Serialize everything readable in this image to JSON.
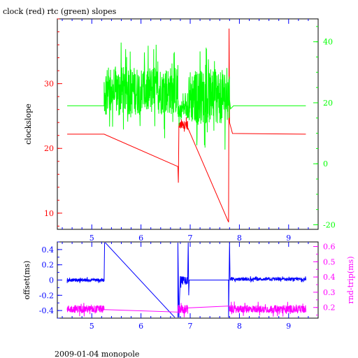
{
  "title": "clock (red) rtc (green) slopes",
  "footer": "2009-01-04 monopole",
  "colors": {
    "clock": "#ff0000",
    "rtc": "#00ff00",
    "offset": "#0000ff",
    "rndtrip": "#ff00ff",
    "frame": "#000000",
    "background": "#ffffff"
  },
  "chart_data": [
    {
      "type": "line",
      "name": "top-panel",
      "x_range": [
        4.3,
        9.6
      ],
      "x_ticks": [
        5,
        6,
        7,
        8,
        9
      ],
      "x_tick_labels": [
        "5",
        "6",
        "7",
        "8",
        "9"
      ],
      "left_axis": {
        "label": "clockslope",
        "range": [
          7.5,
          40.0
        ],
        "ticks": [
          10,
          20,
          30
        ],
        "tick_labels": [
          "10",
          "20",
          "30"
        ],
        "color": "#ff0000"
      },
      "right_axis": {
        "label": "",
        "range": [
          -21.5,
          47.5
        ],
        "ticks": [
          -20,
          0,
          20,
          40
        ],
        "tick_labels": [
          "-20",
          "0",
          "20",
          "40"
        ],
        "color": "#00ff00"
      },
      "series": [
        {
          "name": "clock",
          "axis": "left",
          "color": "#ff0000",
          "x": [
            4.5,
            5.25,
            6.75,
            6.76,
            6.77,
            6.82,
            6.88,
            6.92,
            6.95,
            7.78,
            7.79,
            7.8,
            7.86,
            9.35
          ],
          "y": [
            22.2,
            22.2,
            17.2,
            14.7,
            22.8,
            24.5,
            22.6,
            24.8,
            22.9,
            8.6,
            38.5,
            24.0,
            22.3,
            22.2
          ],
          "noise": [
            {
              "x_start": 6.77,
              "x_end": 6.95,
              "center": 23.6,
              "amplitude": 1.3
            }
          ]
        },
        {
          "name": "rtc",
          "axis": "right",
          "color": "#00ff00",
          "x": [
            4.5,
            5.25,
            7.82,
            7.88,
            9.35
          ],
          "y": [
            19.0,
            19.0,
            18.0,
            19.0,
            19.0
          ],
          "noise": [
            {
              "x_start": 5.25,
              "x_end": 6.75,
              "center": 24.0,
              "amplitude": 16.0
            },
            {
              "x_start": 6.75,
              "x_end": 6.97,
              "center": 18.0,
              "amplitude": 6.0
            },
            {
              "x_start": 6.97,
              "x_end": 7.8,
              "center": 22.0,
              "amplitude": 18.0
            }
          ]
        }
      ]
    },
    {
      "type": "line",
      "name": "bottom-panel",
      "x_range": [
        4.3,
        9.6
      ],
      "x_ticks": [
        5,
        6,
        7,
        8,
        9
      ],
      "x_tick_labels": [
        "5",
        "6",
        "7",
        "8",
        "9"
      ],
      "left_axis": {
        "label": "offset(ms)",
        "range": [
          -0.5,
          0.5
        ],
        "ticks": [
          -0.4,
          -0.2,
          0,
          0.2,
          0.4
        ],
        "tick_labels": [
          "-0.4",
          "-0.2",
          "0",
          "0.2",
          "0.4"
        ],
        "color": "#0000ff"
      },
      "right_axis": {
        "label": "rnd-trip(ms)",
        "range": [
          0.13,
          0.63
        ],
        "ticks": [
          0.2,
          0.3,
          0.4,
          0.5,
          0.6
        ],
        "tick_labels": [
          "0.2",
          "0.3",
          "0.4",
          "0.5",
          "0.6"
        ],
        "color": "#ff00ff"
      },
      "series": [
        {
          "name": "offset",
          "axis": "left",
          "color": "#0000ff",
          "x": [
            4.5,
            5.25,
            5.26,
            5.26,
            6.7,
            6.75,
            6.75,
            6.77,
            6.8,
            6.95,
            6.96,
            6.97,
            6.98,
            7.78,
            7.78,
            7.8,
            7.81,
            9.35
          ],
          "y": [
            0.0,
            0.0,
            0.5,
            0.5,
            -0.5,
            -0.5,
            0.5,
            -0.5,
            0.05,
            0.05,
            0.5,
            -0.2,
            0.0,
            0.0,
            -0.5,
            0.5,
            0.02,
            0.0
          ],
          "noise": [
            {
              "x_start": 4.5,
              "x_end": 5.25,
              "center": 0.0,
              "amplitude": 0.04
            },
            {
              "x_start": 6.8,
              "x_end": 6.95,
              "center": 0.0,
              "amplitude": 0.12
            },
            {
              "x_start": 7.81,
              "x_end": 9.35,
              "center": 0.01,
              "amplitude": 0.04
            }
          ]
        },
        {
          "name": "rnd-trip",
          "axis": "right",
          "color": "#ff00ff",
          "x": [
            4.5,
            5.25,
            6.75,
            6.95,
            7.8,
            9.35
          ],
          "y": [
            0.19,
            0.19,
            0.17,
            0.16,
            0.21,
            0.19
          ],
          "noise": [
            {
              "x_start": 4.5,
              "x_end": 5.25,
              "center": 0.19,
              "amplitude": 0.05
            },
            {
              "x_start": 6.75,
              "x_end": 6.95,
              "center": 0.19,
              "amplitude": 0.06
            },
            {
              "x_start": 7.8,
              "x_end": 9.35,
              "center": 0.19,
              "amplitude": 0.05
            }
          ]
        }
      ]
    }
  ]
}
